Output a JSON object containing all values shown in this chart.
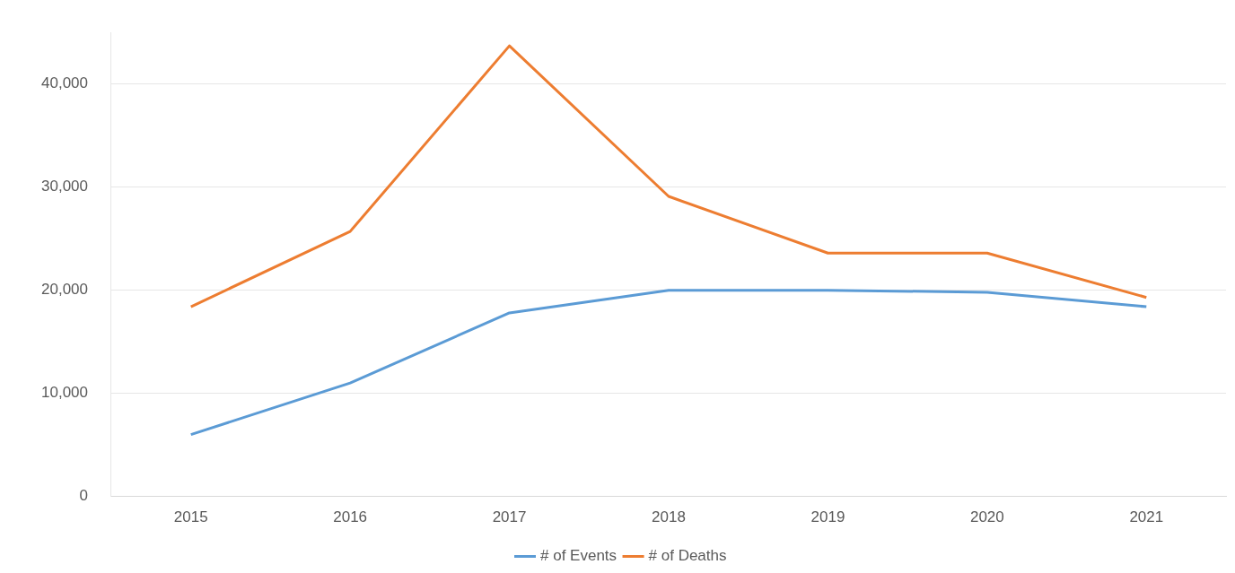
{
  "chart_data": {
    "type": "line",
    "categories": [
      "2015",
      "2016",
      "2017",
      "2018",
      "2019",
      "2020",
      "2021"
    ],
    "series": [
      {
        "name": "# of Events",
        "color": "#5b9bd5",
        "values": [
          6000,
          11000,
          17800,
          20000,
          20000,
          19800,
          18400
        ]
      },
      {
        "name": "# of Deaths",
        "color": "#ed7d31",
        "values": [
          18400,
          25700,
          43700,
          29100,
          23600,
          23600,
          19300
        ]
      }
    ],
    "yticks": [
      {
        "value": 0,
        "label": "0"
      },
      {
        "value": 10000,
        "label": "10,000"
      },
      {
        "value": 20000,
        "label": "20,000"
      },
      {
        "value": 30000,
        "label": "30,000"
      },
      {
        "value": 40000,
        "label": "40,000"
      }
    ],
    "ylim": [
      0,
      45000
    ],
    "grid": "y",
    "legend": "bottom",
    "marker": "none",
    "line_style": "solid"
  }
}
